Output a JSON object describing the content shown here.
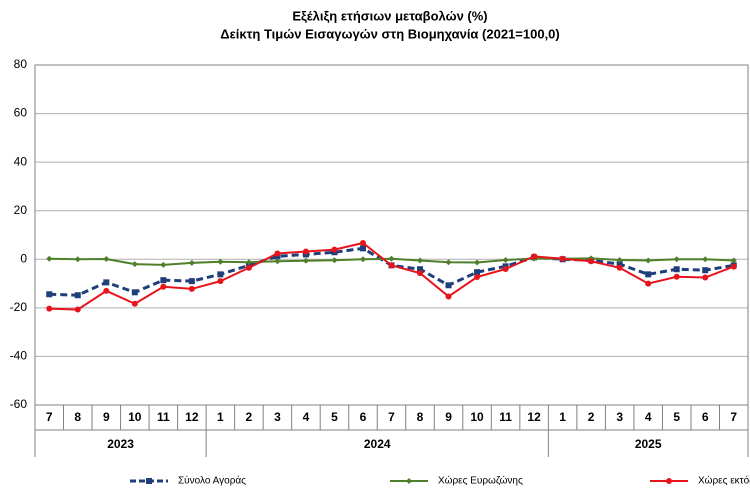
{
  "chart_data": {
    "type": "line",
    "title": "Εξέλιξη ετήσιων μεταβολών (%)",
    "subtitle": "Δείκτη Τιμών Εισαγωγών στη Βιομηχανία (2021=100,0)",
    "categories": [
      "7",
      "8",
      "9",
      "10",
      "11",
      "12",
      "1",
      "2",
      "3",
      "4",
      "5",
      "6",
      "7",
      "8",
      "9",
      "10",
      "11",
      "12",
      "1",
      "2",
      "3",
      "4",
      "5",
      "6",
      "7"
    ],
    "groups": [
      "2023",
      "2024",
      "2025"
    ],
    "series": [
      {
        "name": "Σύνολο Αγοράς",
        "color": "#1f3f7a",
        "style": "dashed",
        "marker": "square",
        "values": [
          -14.4,
          -14.8,
          -9.5,
          -13.6,
          -8.6,
          -9,
          -6.2,
          -2.5,
          1.2,
          2,
          2.9,
          4.5,
          -2.5,
          -4.1,
          -10.7,
          -5.3,
          -2.9,
          0.8,
          0,
          -0.4,
          -2,
          -6.2,
          -4.1,
          -4.5,
          -2.5
        ]
      },
      {
        "name": "Χώρες Ευρωζώνης",
        "color": "#4f7f2a",
        "style": "solid",
        "marker": "diamond",
        "values": [
          0.2,
          0,
          0.1,
          -2,
          -2.3,
          -1.5,
          -1,
          -1.2,
          -0.8,
          -0.6,
          -0.4,
          0,
          0.2,
          -0.5,
          -1.2,
          -1.3,
          -0.3,
          0.3,
          0.2,
          0.4,
          -0.3,
          -0.5,
          0,
          0,
          -0.5
        ]
      },
      {
        "name": "Χώρες εκτός Ευρωζώνης",
        "color": "#e8141b",
        "style": "solid",
        "marker": "circle",
        "values": [
          -20.3,
          -20.7,
          -13,
          -18.3,
          -11.3,
          -12.2,
          -9,
          -3.5,
          2.4,
          3.2,
          4,
          6.7,
          -2.5,
          -5.7,
          -15.3,
          -7.3,
          -4,
          1.2,
          0.2,
          -0.8,
          -3.5,
          -10,
          -7.2,
          -7.5,
          -3
        ]
      }
    ],
    "ylim": [
      -60,
      80
    ],
    "yticks": [
      -60,
      -40,
      -20,
      0,
      20,
      40,
      60,
      80
    ],
    "grid": true
  }
}
